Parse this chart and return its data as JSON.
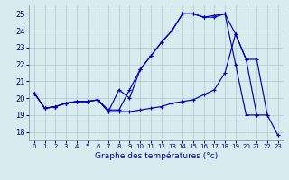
{
  "xlabel": "Graphe des températures (°c)",
  "x_ticks": [
    0,
    1,
    2,
    3,
    4,
    5,
    6,
    7,
    8,
    9,
    10,
    11,
    12,
    13,
    14,
    15,
    16,
    17,
    18,
    19,
    20,
    21,
    22,
    23
  ],
  "ylim": [
    17.5,
    25.5
  ],
  "xlim": [
    -0.5,
    23.5
  ],
  "yticks": [
    18,
    19,
    20,
    21,
    22,
    23,
    24,
    25
  ],
  "bg_color": "#d6ecee",
  "line_color": "#0000bb",
  "grid_color": "#b0c8cc",
  "series": [
    {
      "x": [
        0,
        1,
        2,
        3,
        4,
        5,
        6,
        7,
        8,
        9,
        10,
        11,
        12,
        13,
        14,
        15,
        16,
        17,
        18,
        19,
        20,
        21
      ],
      "y": [
        20.3,
        19.4,
        19.5,
        19.7,
        19.8,
        19.8,
        19.9,
        19.2,
        20.5,
        20.0,
        21.7,
        22.5,
        23.3,
        24.0,
        25.0,
        25.0,
        24.8,
        24.8,
        25.0,
        22.0,
        19.0,
        19.0
      ]
    },
    {
      "x": [
        0,
        1,
        2,
        3,
        4,
        5,
        6,
        7,
        8,
        9,
        10,
        11,
        12,
        13,
        14,
        15,
        16,
        17,
        18,
        19,
        20,
        21,
        22
      ],
      "y": [
        20.3,
        19.4,
        19.5,
        19.7,
        19.8,
        19.8,
        19.9,
        19.3,
        19.3,
        20.5,
        21.7,
        22.5,
        23.3,
        24.0,
        25.0,
        25.0,
        24.8,
        24.9,
        25.0,
        23.8,
        22.3,
        22.3,
        19.0
      ]
    },
    {
      "x": [
        0,
        1,
        2,
        3,
        4,
        5,
        6,
        7,
        8,
        9,
        10,
        11,
        12,
        13,
        14,
        15,
        16,
        17,
        18,
        19,
        20,
        21,
        22,
        23
      ],
      "y": [
        20.3,
        19.4,
        19.5,
        19.7,
        19.8,
        19.8,
        19.9,
        19.2,
        19.2,
        19.2,
        19.3,
        19.4,
        19.5,
        19.7,
        19.8,
        19.9,
        20.2,
        20.5,
        21.5,
        23.8,
        22.3,
        19.0,
        19.0,
        17.8
      ]
    }
  ]
}
